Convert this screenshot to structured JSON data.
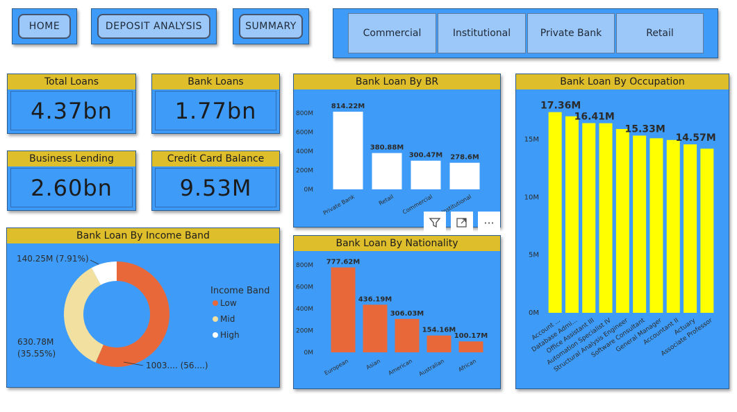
{
  "nav": {
    "home": "HOME",
    "deposit": "DEPOSIT ANALYSIS",
    "summary": "SUMMARY"
  },
  "tabs": [
    "Commercial",
    "Institutional",
    "Private Bank",
    "Retail"
  ],
  "kpis": [
    {
      "label": "Total Loans",
      "value": "4.37bn"
    },
    {
      "label": "Bank Loans",
      "value": "1.77bn"
    },
    {
      "label": "Business Lending",
      "value": "2.60bn"
    },
    {
      "label": "Credit Card Balance",
      "value": "9.53M"
    }
  ],
  "colors": {
    "background": "#3e9bf7",
    "header": "#dfbe2c",
    "tab": "#9bc8f8",
    "br_bar": "#ffffff",
    "nat_bar": "#e8683a",
    "occ_bar": "#ffff00",
    "low": "#e8683a",
    "mid": "#f2e0a0",
    "high": "#ffffff"
  },
  "toolbar": {
    "filter_icon": "filter-icon",
    "focus_icon": "focus-mode-icon",
    "more_label": "···"
  },
  "charts": {
    "br": {
      "title": "Bank Loan By BR"
    },
    "nationality": {
      "title": "Bank Loan By Nationality"
    },
    "occupation": {
      "title": "Bank Loan By Occupation"
    },
    "income": {
      "title": "Bank Loan By Income Band"
    }
  },
  "chart_data": [
    {
      "type": "bar",
      "title": "Bank Loan By BR",
      "categories": [
        "Private Bank",
        "Retail",
        "Commercial",
        "Institutional"
      ],
      "values": [
        814.22,
        380.88,
        300.47,
        278.6
      ],
      "data_labels": [
        "814.22M",
        "380.88M",
        "300.47M",
        "278.6M"
      ],
      "ylim": [
        0,
        800
      ],
      "yticks": [
        "0M",
        "200M",
        "400M",
        "600M",
        "800M"
      ],
      "ytick_values": [
        0,
        200,
        400,
        600,
        800
      ],
      "xlabel": "",
      "ylabel": "",
      "grid": false
    },
    {
      "type": "bar",
      "title": "Bank Loan By Nationality",
      "categories": [
        "European",
        "Asian",
        "American",
        "Australian",
        "African"
      ],
      "values": [
        777.62,
        436.19,
        306.03,
        154.16,
        100.17
      ],
      "data_labels": [
        "777.62M",
        "436.19M",
        "306.03M",
        "154.16M",
        "100.17M"
      ],
      "ylim": [
        0,
        800
      ],
      "yticks": [
        "0M",
        "200M",
        "400M",
        "600M",
        "800M"
      ],
      "ytick_values": [
        0,
        200,
        400,
        600,
        800
      ],
      "xlabel": "",
      "ylabel": "",
      "grid": false
    },
    {
      "type": "bar",
      "title": "Bank Loan By Occupation",
      "categories": [
        "Account ...",
        "Database Admi...",
        "Office Assistant III",
        "Automation Specialist IV",
        "Structural Analysis Engineer",
        "Software Consultant",
        "General Manager",
        "Accountant II",
        "Actuary",
        "Associate Professor"
      ],
      "values": [
        17.36,
        17.0,
        16.41,
        16.4,
        15.9,
        15.33,
        15.1,
        14.95,
        14.57,
        14.2
      ],
      "data_labels": [
        "17.36M",
        "",
        "16.41M",
        "",
        "",
        "15.33M",
        "",
        "",
        "14.57M",
        ""
      ],
      "ylim": [
        0,
        18
      ],
      "yticks": [
        "0M",
        "5M",
        "10M",
        "15M"
      ],
      "ytick_values": [
        0,
        5,
        10,
        15
      ],
      "xlabel": "",
      "ylabel": "",
      "grid": false
    },
    {
      "type": "pie",
      "title": "Bank Loan By Income Band",
      "legend_title": "Income Band",
      "legend_position": "right",
      "slices": [
        {
          "name": "Low",
          "value": 1003,
          "label": "1003.... (56....)"
        },
        {
          "name": "Mid",
          "value": 630.78,
          "label": "630.78M (35.55%)"
        },
        {
          "name": "High",
          "value": 140.25,
          "label": "140.25M (7.91%)"
        }
      ]
    }
  ]
}
